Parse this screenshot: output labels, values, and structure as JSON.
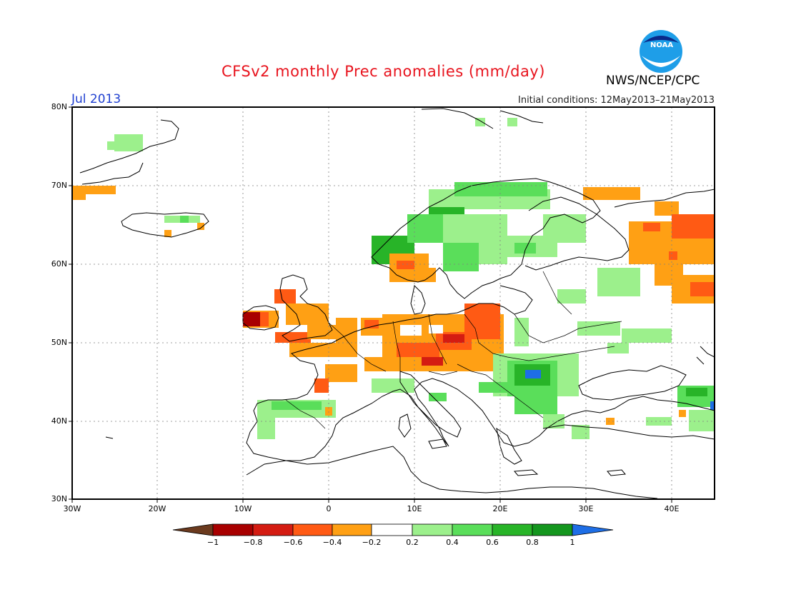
{
  "header": {
    "title": "CFSv2 monthly Prec anomalies (mm/day)",
    "month": "Jul 2013",
    "initial_conditions": "Initial conditions: 12May2013–21May2013",
    "agency": "NWS/NCEP/CPC",
    "logo_text": "NOAA"
  },
  "map": {
    "region": "Europe",
    "lon_range": [
      -30,
      45
    ],
    "lat_range": [
      30,
      80
    ],
    "grid": true,
    "lat_labels": [
      "80N",
      "70N",
      "60N",
      "50N",
      "40N",
      "30N"
    ],
    "lon_labels": [
      "30W",
      "20W",
      "10W",
      "0",
      "10E",
      "20E",
      "30E",
      "40E"
    ]
  },
  "legend": {
    "ticks": [
      "−1",
      "−0.8",
      "−0.6",
      "−0.4",
      "−0.2",
      "0.2",
      "0.4",
      "0.6",
      "0.8",
      "1"
    ],
    "colors": {
      "below_min": "#6b3a1e",
      "neg_1": "#a80000",
      "neg_08": "#d41c12",
      "neg_06": "#ff5a14",
      "neg_04": "#ffa014",
      "neutral": "#ffffff",
      "pos_02": "#9cf08c",
      "pos_04": "#5ade5a",
      "pos_06": "#28b428",
      "pos_08": "#14961e",
      "above_max": "#1e6ee6"
    }
  }
}
